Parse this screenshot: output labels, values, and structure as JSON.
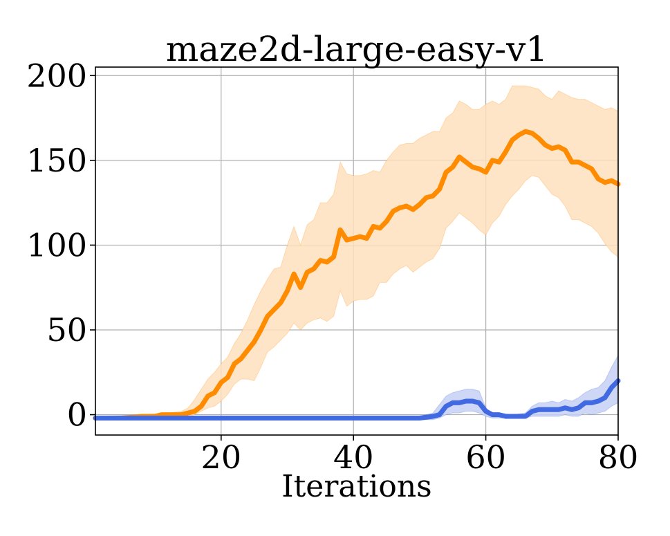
{
  "chart_data": {
    "type": "line",
    "title": "maze2d-large-easy-v1",
    "xlabel": "Iterations",
    "ylabel": "",
    "xlim": [
      1,
      80
    ],
    "ylim": [
      -12,
      205
    ],
    "xticks": [
      20,
      40,
      60,
      80
    ],
    "yticks": [
      0,
      50,
      100,
      150,
      200
    ],
    "grid": true,
    "legend": "none",
    "series": [
      {
        "color": "#ff8c00",
        "band_color": "#ffe0bd",
        "points": [
          [
            1,
            -2
          ],
          [
            5,
            -2
          ],
          [
            8,
            -1
          ],
          [
            10,
            -1
          ],
          [
            11,
            0
          ],
          [
            14,
            0
          ],
          [
            16,
            2
          ],
          [
            17,
            5
          ],
          [
            18,
            11
          ],
          [
            19,
            13
          ],
          [
            20,
            19
          ],
          [
            21,
            22
          ],
          [
            22,
            30
          ],
          [
            23,
            33
          ],
          [
            24,
            38
          ],
          [
            25,
            43
          ],
          [
            26,
            50
          ],
          [
            27,
            58
          ],
          [
            28,
            62
          ],
          [
            29,
            66
          ],
          [
            30,
            73
          ],
          [
            31,
            83
          ],
          [
            32,
            75
          ],
          [
            33,
            84
          ],
          [
            34,
            86
          ],
          [
            35,
            91
          ],
          [
            36,
            90
          ],
          [
            37,
            93
          ],
          [
            38,
            109
          ],
          [
            39,
            103
          ],
          [
            40,
            104
          ],
          [
            41,
            105
          ],
          [
            42,
            104
          ],
          [
            43,
            111
          ],
          [
            44,
            110
          ],
          [
            45,
            114
          ],
          [
            46,
            120
          ],
          [
            47,
            122
          ],
          [
            48,
            123
          ],
          [
            49,
            121
          ],
          [
            50,
            124
          ],
          [
            51,
            128
          ],
          [
            52,
            129
          ],
          [
            53,
            133
          ],
          [
            54,
            143
          ],
          [
            55,
            146
          ],
          [
            56,
            152
          ],
          [
            57,
            149
          ],
          [
            58,
            146
          ],
          [
            59,
            145
          ],
          [
            60,
            143
          ],
          [
            61,
            150
          ],
          [
            62,
            149
          ],
          [
            63,
            155
          ],
          [
            64,
            162
          ],
          [
            65,
            165
          ],
          [
            66,
            167
          ],
          [
            67,
            166
          ],
          [
            68,
            163
          ],
          [
            69,
            159
          ],
          [
            70,
            157
          ],
          [
            71,
            158
          ],
          [
            72,
            156
          ],
          [
            73,
            149
          ],
          [
            74,
            149
          ],
          [
            75,
            147
          ],
          [
            76,
            145
          ],
          [
            77,
            139
          ],
          [
            78,
            137
          ],
          [
            79,
            138
          ],
          [
            80,
            136
          ]
        ],
        "upper": [
          [
            1,
            -1
          ],
          [
            8,
            0
          ],
          [
            12,
            1
          ],
          [
            14,
            2
          ],
          [
            15,
            4
          ],
          [
            16,
            9
          ],
          [
            17,
            15
          ],
          [
            18,
            21
          ],
          [
            19,
            25
          ],
          [
            20,
            30
          ],
          [
            21,
            34
          ],
          [
            22,
            42
          ],
          [
            23,
            48
          ],
          [
            24,
            56
          ],
          [
            25,
            65
          ],
          [
            26,
            73
          ],
          [
            27,
            80
          ],
          [
            28,
            86
          ],
          [
            29,
            87
          ],
          [
            30,
            100
          ],
          [
            31,
            111
          ],
          [
            32,
            100
          ],
          [
            33,
            112
          ],
          [
            34,
            115
          ],
          [
            35,
            125
          ],
          [
            36,
            125
          ],
          [
            37,
            130
          ],
          [
            38,
            149
          ],
          [
            39,
            142
          ],
          [
            40,
            141
          ],
          [
            41,
            141
          ],
          [
            42,
            142
          ],
          [
            43,
            144
          ],
          [
            44,
            143
          ],
          [
            45,
            150
          ],
          [
            46,
            155
          ],
          [
            47,
            159
          ],
          [
            48,
            160
          ],
          [
            49,
            160
          ],
          [
            50,
            163
          ],
          [
            51,
            165
          ],
          [
            52,
            167
          ],
          [
            53,
            167
          ],
          [
            54,
            175
          ],
          [
            55,
            178
          ],
          [
            56,
            185
          ],
          [
            57,
            183
          ],
          [
            58,
            180
          ],
          [
            59,
            180
          ],
          [
            60,
            183
          ],
          [
            61,
            185
          ],
          [
            62,
            183
          ],
          [
            63,
            186
          ],
          [
            64,
            194
          ],
          [
            65,
            194
          ],
          [
            66,
            194
          ],
          [
            67,
            193
          ],
          [
            68,
            192
          ],
          [
            69,
            188
          ],
          [
            70,
            186
          ],
          [
            71,
            191
          ],
          [
            72,
            189
          ],
          [
            73,
            187
          ],
          [
            74,
            186
          ],
          [
            75,
            186
          ],
          [
            76,
            184
          ],
          [
            77,
            182
          ],
          [
            78,
            180
          ],
          [
            79,
            181
          ],
          [
            80,
            179
          ]
        ],
        "lower": [
          [
            1,
            -3
          ],
          [
            8,
            -3
          ],
          [
            12,
            -2
          ],
          [
            14,
            -2
          ],
          [
            15,
            -1
          ],
          [
            16,
            0
          ],
          [
            17,
            2
          ],
          [
            18,
            4
          ],
          [
            19,
            5
          ],
          [
            20,
            8
          ],
          [
            21,
            12
          ],
          [
            22,
            18
          ],
          [
            23,
            21
          ],
          [
            24,
            21
          ],
          [
            25,
            20
          ],
          [
            26,
            28
          ],
          [
            27,
            37
          ],
          [
            28,
            40
          ],
          [
            29,
            44
          ],
          [
            30,
            48
          ],
          [
            31,
            54
          ],
          [
            32,
            50
          ],
          [
            33,
            54
          ],
          [
            34,
            56
          ],
          [
            35,
            57
          ],
          [
            36,
            55
          ],
          [
            37,
            58
          ],
          [
            38,
            73
          ],
          [
            39,
            64
          ],
          [
            40,
            67
          ],
          [
            41,
            68
          ],
          [
            42,
            68
          ],
          [
            43,
            70
          ],
          [
            44,
            78
          ],
          [
            45,
            78
          ],
          [
            46,
            83
          ],
          [
            47,
            86
          ],
          [
            48,
            88
          ],
          [
            49,
            84
          ],
          [
            50,
            87
          ],
          [
            51,
            90
          ],
          [
            52,
            92
          ],
          [
            53,
            98
          ],
          [
            54,
            110
          ],
          [
            55,
            114
          ],
          [
            56,
            119
          ],
          [
            57,
            116
          ],
          [
            58,
            113
          ],
          [
            59,
            109
          ],
          [
            60,
            106
          ],
          [
            61,
            113
          ],
          [
            62,
            117
          ],
          [
            63,
            124
          ],
          [
            64,
            129
          ],
          [
            65,
            133
          ],
          [
            66,
            138
          ],
          [
            67,
            141
          ],
          [
            68,
            140
          ],
          [
            69,
            135
          ],
          [
            70,
            130
          ],
          [
            71,
            128
          ],
          [
            72,
            123
          ],
          [
            73,
            115
          ],
          [
            74,
            115
          ],
          [
            75,
            113
          ],
          [
            76,
            111
          ],
          [
            77,
            107
          ],
          [
            78,
            101
          ],
          [
            79,
            96
          ],
          [
            80,
            93
          ]
        ]
      },
      {
        "color": "#4169e1",
        "band_color": "#c5d0f3",
        "points": [
          [
            1,
            -2
          ],
          [
            10,
            -2
          ],
          [
            20,
            -2
          ],
          [
            30,
            -2
          ],
          [
            40,
            -2
          ],
          [
            45,
            -2
          ],
          [
            50,
            -2
          ],
          [
            52,
            -1
          ],
          [
            53,
            0
          ],
          [
            54,
            5
          ],
          [
            55,
            7
          ],
          [
            56,
            7
          ],
          [
            57,
            8
          ],
          [
            58,
            8
          ],
          [
            59,
            7
          ],
          [
            60,
            2
          ],
          [
            61,
            0
          ],
          [
            62,
            0
          ],
          [
            63,
            -1
          ],
          [
            64,
            -1
          ],
          [
            65,
            -1
          ],
          [
            66,
            -1
          ],
          [
            67,
            2
          ],
          [
            68,
            3
          ],
          [
            69,
            3
          ],
          [
            70,
            3
          ],
          [
            71,
            3
          ],
          [
            72,
            4
          ],
          [
            73,
            3
          ],
          [
            74,
            4
          ],
          [
            75,
            7
          ],
          [
            76,
            7
          ],
          [
            77,
            8
          ],
          [
            78,
            10
          ],
          [
            79,
            16
          ],
          [
            80,
            20
          ]
        ],
        "upper": [
          [
            1,
            -1
          ],
          [
            50,
            -1
          ],
          [
            52,
            1
          ],
          [
            53,
            6
          ],
          [
            54,
            11
          ],
          [
            55,
            13
          ],
          [
            56,
            14
          ],
          [
            57,
            15
          ],
          [
            58,
            15
          ],
          [
            59,
            14
          ],
          [
            60,
            4
          ],
          [
            61,
            1
          ],
          [
            62,
            1
          ],
          [
            64,
            0
          ],
          [
            66,
            1
          ],
          [
            67,
            5
          ],
          [
            68,
            7
          ],
          [
            69,
            7
          ],
          [
            70,
            8
          ],
          [
            71,
            7
          ],
          [
            72,
            9
          ],
          [
            73,
            8
          ],
          [
            74,
            10
          ],
          [
            75,
            13
          ],
          [
            76,
            15
          ],
          [
            77,
            16
          ],
          [
            78,
            20
          ],
          [
            79,
            28
          ],
          [
            80,
            35
          ]
        ],
        "lower": [
          [
            1,
            -3
          ],
          [
            50,
            -3
          ],
          [
            52,
            -3
          ],
          [
            53,
            -2
          ],
          [
            54,
            0
          ],
          [
            55,
            1
          ],
          [
            56,
            1
          ],
          [
            57,
            2
          ],
          [
            58,
            2
          ],
          [
            59,
            1
          ],
          [
            60,
            -1
          ],
          [
            61,
            -2
          ],
          [
            62,
            -2
          ],
          [
            64,
            -2
          ],
          [
            66,
            -2
          ],
          [
            67,
            -1
          ],
          [
            68,
            -1
          ],
          [
            69,
            -1
          ],
          [
            70,
            -1
          ],
          [
            71,
            -1
          ],
          [
            72,
            0
          ],
          [
            73,
            -1
          ],
          [
            74,
            -1
          ],
          [
            75,
            1
          ],
          [
            76,
            0
          ],
          [
            77,
            1
          ],
          [
            78,
            2
          ],
          [
            79,
            5
          ],
          [
            80,
            7
          ]
        ]
      }
    ]
  }
}
